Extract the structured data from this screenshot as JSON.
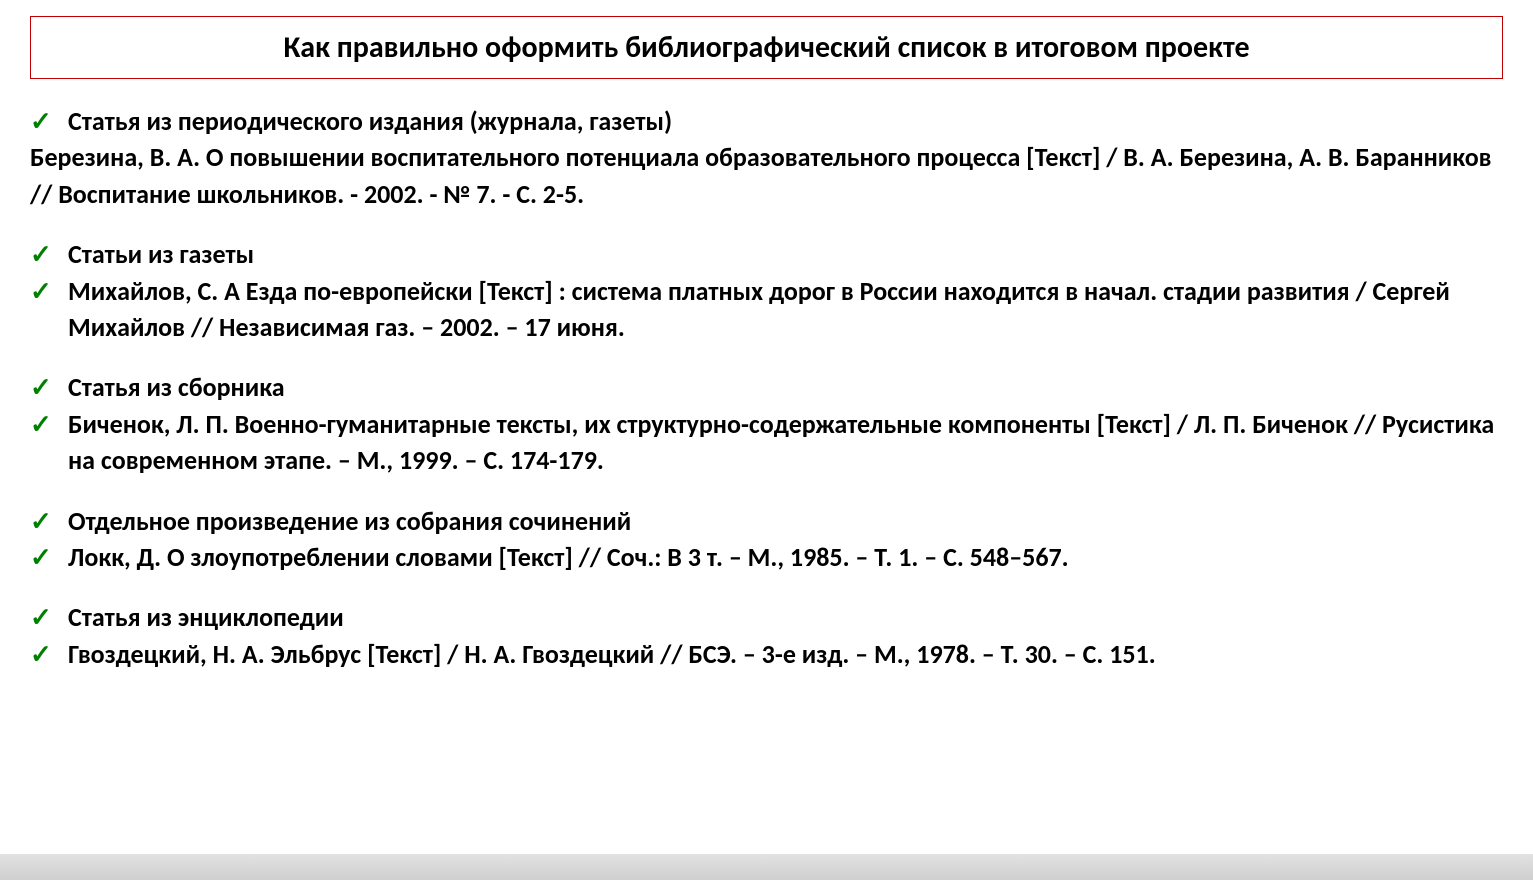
{
  "title": "Как правильно оформить библиографический список в итоговом проекте",
  "check_glyph": "✓",
  "colors": {
    "title_border": "#c00000",
    "check_color": "#008000",
    "text_color": "#000000",
    "background": "#ffffff",
    "footer_gradient_top": "#e2e2e2",
    "footer_gradient_bottom": "#cfcfcf"
  },
  "typography": {
    "title_fontsize": 30,
    "body_fontsize": 26,
    "font_weight": "bold",
    "font_family": "Calibri, Arial, sans-serif"
  },
  "sections": [
    {
      "heading": "Статья из периодического издания (журнала, газеты)",
      "body_plain": "Березина, В. А. О повышении воспитательного потенциала образовательного процесса [Текст] / В. А. Березина, А. В. Баранников // Воспитание школьников. - 2002. - № 7. - С. 2-5."
    },
    {
      "heading": "Статьи из газеты",
      "body_checked": "Михайлов, С. А Езда по-европейски [Текст] : система платных дорог в России находится в начал. стадии развития / Сергей Михайлов // Независимая газ. – 2002. – 17 июня."
    },
    {
      "heading": "Статья из сборника",
      "body_checked": "Биченок, Л. П. Военно-гуманитарные тексты, их структурно-содержательные компоненты [Текст] / Л. П. Биченок // Русистика на современном этапе. – М., 1999. – С. 174-179."
    },
    {
      "heading": "Отдельное произведение из собрания сочинений",
      "body_checked": "Локк, Д. О злоупотреблении словами [Текст] // Соч.: В 3 т. – М., 1985. – Т. 1. – С. 548–567."
    },
    {
      "heading": "Статья из энциклопедии",
      "body_checked": "Гвоздецкий, Н. А. Эльбрус [Текст] / Н. А. Гвоздецкий // БСЭ. – 3-е изд. – М., 1978. – Т. 30. – С. 151."
    }
  ]
}
